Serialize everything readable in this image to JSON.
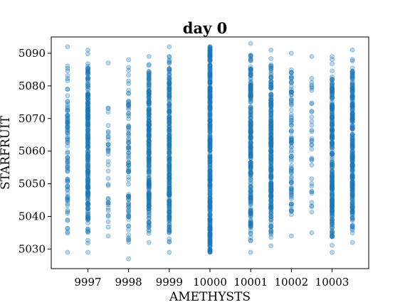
{
  "chart_data": {
    "type": "scatter",
    "title": "day 0",
    "xlabel": "AMETHYSTS",
    "ylabel": "STARFRUIT",
    "xlim": [
      9996.1,
      10003.9
    ],
    "ylim": [
      5024,
      5095
    ],
    "xticks": [
      9997,
      9998,
      9999,
      10000,
      10001,
      10002,
      10003
    ],
    "yticks": [
      5030,
      5040,
      5050,
      5060,
      5070,
      5080,
      5090
    ],
    "grid": false,
    "marker_color": "#1f77b4",
    "marker_alpha": 0.3,
    "columns": [
      {
        "x": 9996.5,
        "ymin": 5029,
        "ymax": 5092,
        "density": "medium"
      },
      {
        "x": 9997,
        "ymin": 5029,
        "ymax": 5091,
        "density": "dense"
      },
      {
        "x": 9997.5,
        "ymin": 5034,
        "ymax": 5087,
        "density": "sparse"
      },
      {
        "x": 9998,
        "ymin": 5027,
        "ymax": 5088,
        "density": "medium"
      },
      {
        "x": 9998.5,
        "ymin": 5032,
        "ymax": 5089,
        "density": "dense"
      },
      {
        "x": 9999,
        "ymin": 5029,
        "ymax": 5092,
        "density": "dense"
      },
      {
        "x": 10000,
        "ymin": 5029,
        "ymax": 5092,
        "density": "solid"
      },
      {
        "x": 10001,
        "ymin": 5029,
        "ymax": 5093,
        "density": "dense"
      },
      {
        "x": 10001.5,
        "ymin": 5031,
        "ymax": 5091,
        "density": "dense"
      },
      {
        "x": 10002,
        "ymin": 5034,
        "ymax": 5090,
        "density": "medium"
      },
      {
        "x": 10002.5,
        "ymin": 5035,
        "ymax": 5089,
        "density": "sparse"
      },
      {
        "x": 10003,
        "ymin": 5029,
        "ymax": 5089,
        "density": "dense"
      },
      {
        "x": 10003.5,
        "ymin": 5032,
        "ymax": 5091,
        "density": "dense"
      }
    ]
  }
}
